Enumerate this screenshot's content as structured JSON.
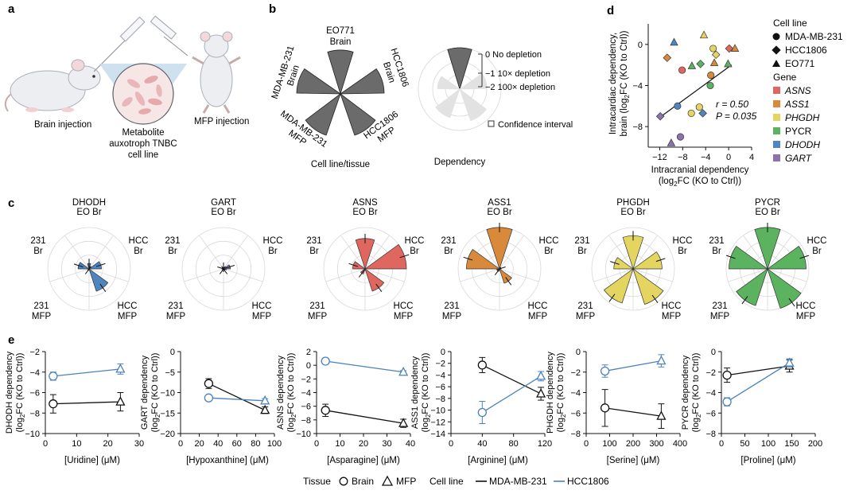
{
  "panels": {
    "a": {
      "letter": "a",
      "brain_injection": "Brain injection",
      "mfp_injection": "MFP injection",
      "metabolite_lines": [
        "Metabolite",
        "auxotroph TNBC",
        "cell line"
      ]
    },
    "b": {
      "letter": "b",
      "top_label_1": "EO771",
      "top_label_2": "Brain",
      "left_label_1": "MDA-MB-231",
      "left_label_2": "Brain",
      "right_label_1": "HCC1806",
      "right_label_2": "Brain",
      "bl_label_1": "MDA-MB-231",
      "bl_label_2": "MFP",
      "br_label_1": "HCC1806",
      "br_label_2": "MFP",
      "caption_left": "Cell line/tissue",
      "caption_right": "Dependency",
      "legend": [
        "0 No depletion",
        "−1 10× depletion",
        "−2 100× depletion",
        "Confidence interval"
      ]
    },
    "c": {
      "letter": "c"
    },
    "d": {
      "letter": "d"
    },
    "e": {
      "letter": "e"
    }
  },
  "legend_d": {
    "cell_line_title": "Cell line",
    "cell_lines": [
      "MDA-MB-231",
      "HCC1806",
      "EO771"
    ],
    "gene_title": "Gene",
    "genes": [
      {
        "name": "ASNS",
        "color": "#e06660",
        "italic": true
      },
      {
        "name": "ASS1",
        "color": "#d9893a",
        "italic": true
      },
      {
        "name": "PHGDH",
        "color": "#e3d560",
        "italic": true
      },
      {
        "name": "PYCR",
        "color": "#5bb35f",
        "italic": false
      },
      {
        "name": "DHODH",
        "color": "#4f86c0",
        "italic": true
      },
      {
        "name": "GART",
        "color": "#8e72b0",
        "italic": true
      }
    ]
  },
  "legend_e": {
    "tissue": "Tissue",
    "brain": "Brain",
    "mfp": "MFP",
    "cell_line": "Cell line",
    "mda": "MDA-MB-231",
    "hcc": "HCC1806",
    "mda_color": "#111111",
    "hcc_color": "#4a82bd"
  },
  "chart_data": [
    {
      "type": "scatter",
      "panel": "d",
      "xlabel": "Intracranial dependency (log2FC (KO to Ctrl))",
      "ylabel": "Intracardiac dependency, brain (log2FC (KO to Ctrl))",
      "xlim": [
        -14,
        4
      ],
      "ylim": [
        -10,
        2
      ],
      "xticks": [
        -12,
        -8,
        -4,
        0,
        4
      ],
      "yticks": [
        0,
        -4,
        -8
      ],
      "annotation_r": "r = 0.50",
      "annotation_p": "P = 0.035",
      "points": [
        {
          "x": -9.5,
          "y": 0.2,
          "gene": "DHODH",
          "cell": "EO771"
        },
        {
          "x": -4.3,
          "y": 0.9,
          "gene": "PHGDH",
          "cell": "EO771"
        },
        {
          "x": -10.7,
          "y": -1.3,
          "gene": "ASS1",
          "cell": "HCC1806"
        },
        {
          "x": -2.7,
          "y": -0.4,
          "gene": "PHGDH",
          "cell": "MDA-MB-231"
        },
        {
          "x": 0.1,
          "y": -0.4,
          "gene": "ASNS",
          "cell": "HCC1806"
        },
        {
          "x": 1.1,
          "y": -0.4,
          "gene": "ASS1",
          "cell": "EO771"
        },
        {
          "x": -2.2,
          "y": -1.0,
          "gene": "PHGDH",
          "cell": "HCC1806"
        },
        {
          "x": -6.4,
          "y": -2.1,
          "gene": "PYCR",
          "cell": "EO771"
        },
        {
          "x": -4.9,
          "y": -1.9,
          "gene": "PYCR",
          "cell": "HCC1806"
        },
        {
          "x": -2.5,
          "y": -1.8,
          "gene": "ASS1",
          "cell": "EO771"
        },
        {
          "x": -0.1,
          "y": -1.9,
          "gene": "PYCR",
          "cell": "EO771"
        },
        {
          "x": -8.1,
          "y": -2.5,
          "gene": "ASNS",
          "cell": "MDA-MB-231"
        },
        {
          "x": -3.1,
          "y": -3.0,
          "gene": "ASS1",
          "cell": "MDA-MB-231"
        },
        {
          "x": -3.2,
          "y": -4.0,
          "gene": "PYCR",
          "cell": "MDA-MB-231"
        },
        {
          "x": -8.9,
          "y": -6.0,
          "gene": "DHODH",
          "cell": "MDA-MB-231"
        },
        {
          "x": -5.1,
          "y": -6.1,
          "gene": "PHGDH",
          "cell": "MDA-MB-231"
        },
        {
          "x": -6.5,
          "y": -6.7,
          "gene": "PHGDH",
          "cell": "MDA-MB-231"
        },
        {
          "x": -4.5,
          "y": -6.7,
          "gene": "DHODH",
          "cell": "HCC1806"
        },
        {
          "x": -11.9,
          "y": -7.0,
          "gene": "GART",
          "cell": "HCC1806"
        },
        {
          "x": -8.4,
          "y": -9.0,
          "gene": "GART",
          "cell": "MDA-MB-231"
        },
        {
          "x": -10.0,
          "y": -9.6,
          "gene": "GART",
          "cell": "EO771"
        }
      ],
      "fit_line": [
        [
          -11.5,
          -6.9
        ],
        [
          0.5,
          -2.0
        ]
      ]
    },
    {
      "type": "polar-bar",
      "panel": "c",
      "categories": [
        "EO Br",
        "HCC Br",
        "HCC MFP",
        "231 MFP",
        "231 Br"
      ],
      "series": [
        {
          "name": "DHODH",
          "color": "#4f86c0",
          "values": [
            -2.6,
            -2.1,
            -1.3,
            -3.0,
            -2.2
          ]
        },
        {
          "name": "GART",
          "color": "#8e72b0",
          "values": [
            -3.0,
            -2.5,
            -3.0,
            -3.0,
            -3.0
          ]
        },
        {
          "name": "ASNS",
          "color": "#e06660",
          "values": [
            -0.8,
            0.0,
            -1.3,
            -2.6,
            -2.1
          ]
        },
        {
          "name": "ASS1",
          "color": "#d9893a",
          "values": [
            0.0,
            -3.0,
            -1.9,
            -2.8,
            -0.6
          ]
        },
        {
          "name": "PHGDH",
          "color": "#e3d560",
          "values": [
            -0.6,
            -0.9,
            -0.3,
            -0.4,
            -1.6
          ]
        },
        {
          "name": "PYCR",
          "color": "#5bb35f",
          "values": [
            0.0,
            -0.2,
            0.0,
            -0.2,
            -0.2
          ]
        }
      ]
    },
    {
      "type": "line",
      "panel": "e",
      "title": "DHODH",
      "xlabel": "[Uridine] (μM)",
      "ylabel": "DHODH dependency (log2FC (KO to Ctrl))",
      "xlim": [
        0,
        30
      ],
      "ylim": [
        -10,
        -2
      ],
      "xticks": [
        0,
        10,
        20,
        30
      ],
      "yticks": [
        -2,
        -4,
        -6,
        -8,
        -10
      ],
      "series": [
        {
          "name": "MDA-MB-231",
          "x": [
            2.5,
            24
          ],
          "y": [
            -7.1,
            -6.9
          ],
          "err": [
            0.9,
            0.9
          ]
        },
        {
          "name": "HCC1806",
          "x": [
            2.5,
            24
          ],
          "y": [
            -4.4,
            -3.7
          ],
          "err": [
            0.4,
            0.5
          ]
        }
      ]
    },
    {
      "type": "line",
      "panel": "e",
      "title": "GART",
      "xlabel": "[Hypoxanthine] (μM)",
      "ylabel": "GART dependency (log2FC (KO to Ctrl))",
      "xlim": [
        0,
        100
      ],
      "ylim": [
        -20,
        0
      ],
      "xticks": [
        0,
        20,
        40,
        60,
        80,
        100
      ],
      "yticks": [
        0,
        -5,
        -10,
        -15,
        -20
      ],
      "series": [
        {
          "name": "MDA-MB-231",
          "x": [
            30,
            90
          ],
          "y": [
            -7.8,
            -14.3
          ],
          "err": [
            1.2,
            0.8
          ]
        },
        {
          "name": "HCC1806",
          "x": [
            30,
            90
          ],
          "y": [
            -11.3,
            -12.0
          ],
          "err": [
            0.5,
            0.5
          ]
        }
      ]
    },
    {
      "type": "line",
      "panel": "e",
      "title": "ASNS",
      "xlabel": "[Asparagine] (μM)",
      "ylabel": "ASNS dependency (log2FC (KO to Ctrl))",
      "xlim": [
        0,
        40
      ],
      "ylim": [
        -10,
        2
      ],
      "xticks": [
        0,
        10,
        20,
        30,
        40
      ],
      "yticks": [
        2,
        0,
        -2,
        -4,
        -6,
        -8,
        -10
      ],
      "series": [
        {
          "name": "MDA-MB-231",
          "x": [
            3.8,
            37
          ],
          "y": [
            -6.6,
            -8.5
          ],
          "err": [
            0.9,
            0.6
          ]
        },
        {
          "name": "HCC1806",
          "x": [
            3.8,
            37
          ],
          "y": [
            0.6,
            -1.0
          ],
          "err": [
            0.2,
            0.2
          ]
        }
      ]
    },
    {
      "type": "line",
      "panel": "e",
      "title": "ASS1",
      "xlabel": "[Arginine] (μM)",
      "ylabel": "ASS1 dependency (log2FC (KO to Ctrl))",
      "xlim": [
        0,
        120
      ],
      "ylim": [
        -14,
        0
      ],
      "xticks": [
        0,
        40,
        80,
        120
      ],
      "yticks": [
        0,
        -2,
        -4,
        -6,
        -8,
        -10,
        -12,
        -14
      ],
      "series": [
        {
          "name": "MDA-MB-231",
          "x": [
            40,
            115
          ],
          "y": [
            -2.3,
            -7.2
          ],
          "err": [
            1.3,
            1.1
          ]
        },
        {
          "name": "HCC1806",
          "x": [
            40,
            115
          ],
          "y": [
            -10.4,
            -4.2
          ],
          "err": [
            1.9,
            0.8
          ]
        }
      ]
    },
    {
      "type": "line",
      "panel": "e",
      "title": "PHGDH",
      "xlabel": "[Serine] (μM)",
      "ylabel": "PHGDH dependency (log2FC (KO to Ctrl))",
      "xlim": [
        0,
        400
      ],
      "ylim": [
        -8,
        0
      ],
      "xticks": [
        0,
        100,
        200,
        300,
        400
      ],
      "yticks": [
        0,
        -2,
        -4,
        -6,
        -8
      ],
      "series": [
        {
          "name": "MDA-MB-231",
          "x": [
            80,
            320
          ],
          "y": [
            -5.5,
            -6.3
          ],
          "err": [
            1.8,
            1.2
          ]
        },
        {
          "name": "HCC1806",
          "x": [
            80,
            320
          ],
          "y": [
            -1.9,
            -0.9
          ],
          "err": [
            0.6,
            0.6
          ]
        }
      ]
    },
    {
      "type": "line",
      "panel": "e",
      "title": "PYCR",
      "xlabel": "[Proline] (μM)",
      "ylabel": "PYCR dependency (log2FC (KO to Ctrl))",
      "xlim": [
        0,
        200
      ],
      "ylim": [
        -8,
        0
      ],
      "xticks": [
        0,
        50,
        100,
        150,
        200
      ],
      "yticks": [
        0,
        -2,
        -4,
        -6,
        -8
      ],
      "series": [
        {
          "name": "MDA-MB-231",
          "x": [
            12,
            145
          ],
          "y": [
            -2.3,
            -1.4
          ],
          "err": [
            0.7,
            0.6
          ]
        },
        {
          "name": "HCC1806",
          "x": [
            12,
            145
          ],
          "y": [
            -4.9,
            -1.1
          ],
          "err": [
            0.4,
            0.4
          ]
        }
      ]
    }
  ]
}
